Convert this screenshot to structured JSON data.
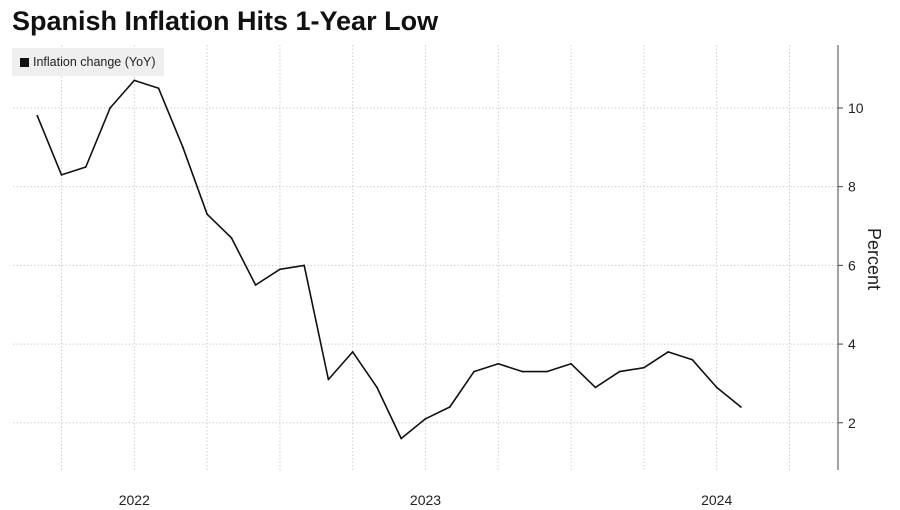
{
  "chart_data": {
    "type": "line",
    "title": "Spanish Inflation Hits 1-Year Low",
    "ylabel": "Percent",
    "ylim": [
      0.8,
      11.6
    ],
    "yticks": [
      2,
      4,
      6,
      8,
      10
    ],
    "xlim": [
      "2021-11",
      "2024-09"
    ],
    "xtick_labels": [
      "2022",
      "2023",
      "2024"
    ],
    "grid": true,
    "legend_position": "top-left",
    "series": [
      {
        "name": "Inflation change (YoY)",
        "color": "#111111",
        "points": [
          {
            "x": "2021-12",
            "y": 9.8
          },
          {
            "x": "2022-01",
            "y": 8.3
          },
          {
            "x": "2022-02",
            "y": 8.5
          },
          {
            "x": "2022-03",
            "y": 10.0
          },
          {
            "x": "2022-04",
            "y": 10.7
          },
          {
            "x": "2022-05",
            "y": 10.5
          },
          {
            "x": "2022-06",
            "y": 9.0
          },
          {
            "x": "2022-07",
            "y": 7.3
          },
          {
            "x": "2022-08",
            "y": 6.7
          },
          {
            "x": "2022-09",
            "y": 5.5
          },
          {
            "x": "2022-10",
            "y": 5.9
          },
          {
            "x": "2022-11",
            "y": 6.0
          },
          {
            "x": "2022-12",
            "y": 3.1
          },
          {
            "x": "2023-01",
            "y": 3.8
          },
          {
            "x": "2023-02",
            "y": 2.9
          },
          {
            "x": "2023-03",
            "y": 1.6
          },
          {
            "x": "2023-04",
            "y": 2.1
          },
          {
            "x": "2023-05",
            "y": 2.4
          },
          {
            "x": "2023-06",
            "y": 3.3
          },
          {
            "x": "2023-07",
            "y": 3.5
          },
          {
            "x": "2023-08",
            "y": 3.3
          },
          {
            "x": "2023-09",
            "y": 3.3
          },
          {
            "x": "2023-10",
            "y": 3.5
          },
          {
            "x": "2023-11",
            "y": 2.9
          },
          {
            "x": "2023-12",
            "y": 3.3
          },
          {
            "x": "2024-01",
            "y": 3.4
          },
          {
            "x": "2024-02",
            "y": 3.8
          },
          {
            "x": "2024-03",
            "y": 3.6
          },
          {
            "x": "2024-04",
            "y": 2.9
          },
          {
            "x": "2024-05",
            "y": 2.4
          }
        ]
      }
    ]
  }
}
